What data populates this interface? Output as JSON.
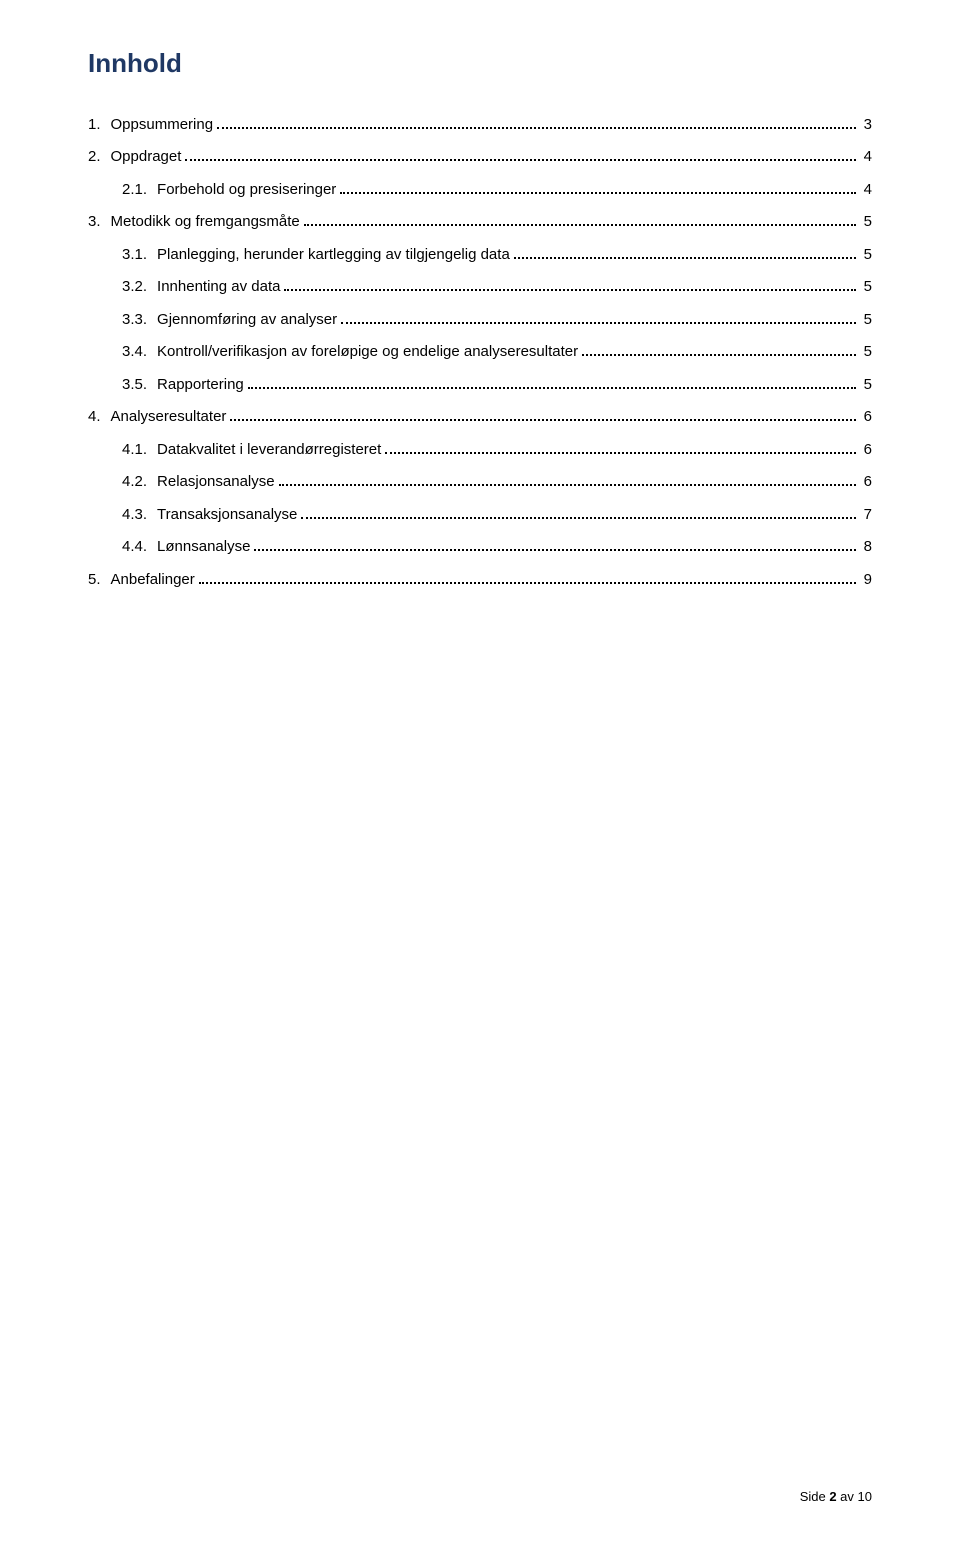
{
  "title": "Innhold",
  "toc": [
    {
      "level": 1,
      "num": "1.",
      "label": "Oppsummering",
      "page": "3",
      "group_first": true
    },
    {
      "level": 1,
      "num": "2.",
      "label": "Oppdraget",
      "page": "4",
      "group_first": true
    },
    {
      "level": 2,
      "num": "2.1.",
      "label": "Forbehold og presiseringer",
      "page": "4"
    },
    {
      "level": 1,
      "num": "3.",
      "label": "Metodikk og fremgangsmåte",
      "page": "5",
      "group_first": true
    },
    {
      "level": 2,
      "num": "3.1.",
      "label": "Planlegging, herunder kartlegging av tilgjengelig data",
      "page": "5"
    },
    {
      "level": 2,
      "num": "3.2.",
      "label": "Innhenting av data",
      "page": "5"
    },
    {
      "level": 2,
      "num": "3.3.",
      "label": "Gjennomføring av analyser",
      "page": "5"
    },
    {
      "level": 2,
      "num": "3.4.",
      "label": "Kontroll/verifikasjon av foreløpige og endelige analyseresultater",
      "page": "5"
    },
    {
      "level": 2,
      "num": "3.5.",
      "label": "Rapportering",
      "page": "5"
    },
    {
      "level": 1,
      "num": "4.",
      "label": "Analyseresultater",
      "page": "6",
      "group_first": true
    },
    {
      "level": 2,
      "num": "4.1.",
      "label": "Datakvalitet i leverandørregisteret",
      "page": "6"
    },
    {
      "level": 2,
      "num": "4.2.",
      "label": "Relasjonsanalyse",
      "page": "6"
    },
    {
      "level": 2,
      "num": "4.3.",
      "label": "Transaksjonsanalyse",
      "page": "7"
    },
    {
      "level": 2,
      "num": "4.4.",
      "label": "Lønnsanalyse",
      "page": "8"
    },
    {
      "level": 1,
      "num": "5.",
      "label": "Anbefalinger",
      "page": "9",
      "group_first": true
    }
  ],
  "footer": {
    "prefix": "Side ",
    "current": "2",
    "sep": " av ",
    "total": "10"
  },
  "colors": {
    "title": "#1f3864",
    "text": "#000000",
    "background": "#ffffff"
  },
  "fonts": {
    "title_family": "Trebuchet MS",
    "title_size_pt": 20,
    "body_family": "Verdana",
    "body_size_pt": 11
  }
}
